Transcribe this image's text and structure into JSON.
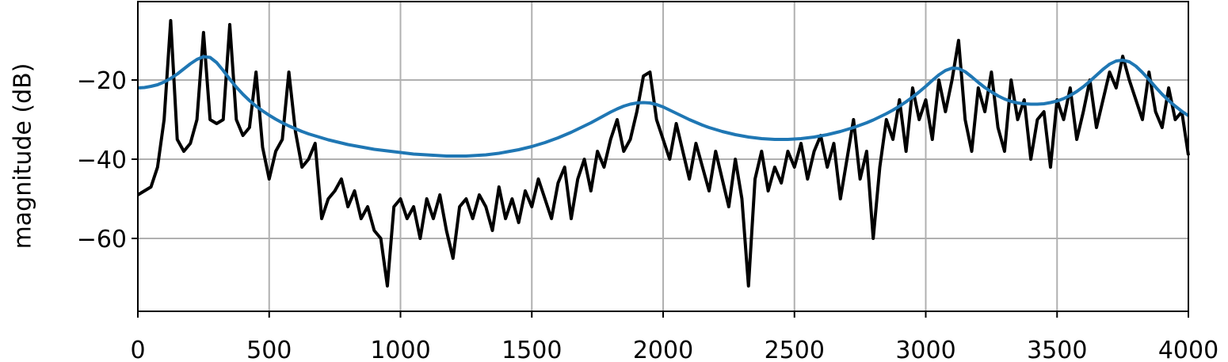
{
  "chart_data": {
    "type": "line",
    "y_label": "magnitude (dB)",
    "x": [
      0,
      25,
      50,
      75,
      100,
      125,
      150,
      175,
      200,
      225,
      250,
      275,
      300,
      325,
      350,
      375,
      400,
      425,
      450,
      475,
      500,
      525,
      550,
      575,
      600,
      625,
      650,
      675,
      700,
      725,
      750,
      775,
      800,
      825,
      850,
      875,
      900,
      925,
      950,
      975,
      1000,
      1025,
      1050,
      1075,
      1100,
      1125,
      1150,
      1175,
      1200,
      1225,
      1250,
      1275,
      1300,
      1325,
      1350,
      1375,
      1400,
      1425,
      1450,
      1475,
      1500,
      1525,
      1550,
      1575,
      1600,
      1625,
      1650,
      1675,
      1700,
      1725,
      1750,
      1775,
      1800,
      1825,
      1850,
      1875,
      1900,
      1925,
      1950,
      1975,
      2000,
      2025,
      2050,
      2075,
      2100,
      2125,
      2150,
      2175,
      2200,
      2225,
      2250,
      2275,
      2300,
      2325,
      2350,
      2375,
      2400,
      2425,
      2450,
      2475,
      2500,
      2525,
      2550,
      2575,
      2600,
      2625,
      2650,
      2675,
      2700,
      2725,
      2750,
      2775,
      2800,
      2825,
      2850,
      2875,
      2900,
      2925,
      2950,
      2975,
      3000,
      3025,
      3050,
      3075,
      3100,
      3125,
      3150,
      3175,
      3200,
      3225,
      3250,
      3275,
      3300,
      3325,
      3350,
      3375,
      3400,
      3425,
      3450,
      3475,
      3500,
      3525,
      3550,
      3575,
      3600,
      3625,
      3650,
      3675,
      3700,
      3725,
      3750,
      3775,
      3800,
      3825,
      3850,
      3875,
      3900,
      3925,
      3950,
      3975,
      4000
    ],
    "series": [
      {
        "color": "#000000",
        "values": [
          -49,
          -48,
          -47,
          -42,
          -30,
          -5,
          -35,
          -38,
          -36,
          -30,
          -8,
          -30,
          -31,
          -30,
          -6,
          -30,
          -34,
          -32,
          -18,
          -37,
          -45,
          -38,
          -35,
          -18,
          -33,
          -42,
          -40,
          -36,
          -55,
          -50,
          -48,
          -45,
          -52,
          -48,
          -55,
          -52,
          -58,
          -60,
          -72,
          -52,
          -50,
          -55,
          -52,
          -60,
          -50,
          -55,
          -49,
          -58,
          -65,
          -52,
          -50,
          -55,
          -49,
          -52,
          -58,
          -47,
          -55,
          -50,
          -56,
          -48,
          -52,
          -45,
          -50,
          -55,
          -46,
          -42,
          -55,
          -45,
          -40,
          -48,
          -38,
          -42,
          -35,
          -30,
          -38,
          -35,
          -28,
          -19,
          -18,
          -30,
          -35,
          -40,
          -31,
          -38,
          -45,
          -36,
          -42,
          -48,
          -38,
          -45,
          -52,
          -40,
          -50,
          -72,
          -45,
          -38,
          -48,
          -42,
          -46,
          -38,
          -42,
          -36,
          -45,
          -38,
          -34,
          -42,
          -36,
          -50,
          -40,
          -30,
          -45,
          -38,
          -60,
          -42,
          -30,
          -35,
          -25,
          -38,
          -22,
          -30,
          -25,
          -35,
          -20,
          -28,
          -20,
          -10,
          -30,
          -38,
          -22,
          -28,
          -18,
          -32,
          -38,
          -20,
          -30,
          -25,
          -40,
          -30,
          -28,
          -42,
          -25,
          -30,
          -22,
          -35,
          -28,
          -20,
          -32,
          -25,
          -18,
          -22,
          -14,
          -20,
          -25,
          -30,
          -18,
          -28,
          -32,
          -22,
          -30,
          -28,
          -39
        ]
      },
      {
        "color": "#1f77b4",
        "values": [
          -22,
          -21.9,
          -21.6,
          -21.2,
          -20.5,
          -19.6,
          -18.5,
          -17.2,
          -15.9,
          -14.8,
          -14.1,
          -14.3,
          -15.6,
          -17.6,
          -19.8,
          -21.8,
          -23.6,
          -25.2,
          -26.6,
          -27.8,
          -28.9,
          -29.9,
          -30.8,
          -31.6,
          -32.3,
          -33,
          -33.6,
          -34.1,
          -34.6,
          -35.1,
          -35.5,
          -35.9,
          -36.3,
          -36.6,
          -36.9,
          -37.2,
          -37.5,
          -37.7,
          -37.9,
          -38.1,
          -38.3,
          -38.5,
          -38.7,
          -38.8,
          -38.9,
          -39,
          -39.1,
          -39.2,
          -39.2,
          -39.2,
          -39.2,
          -39.1,
          -39,
          -38.9,
          -38.7,
          -38.5,
          -38.2,
          -37.9,
          -37.6,
          -37.2,
          -36.8,
          -36.3,
          -35.8,
          -35.2,
          -34.6,
          -33.9,
          -33.2,
          -32.4,
          -31.6,
          -30.8,
          -29.9,
          -29,
          -28.1,
          -27.3,
          -26.6,
          -26.1,
          -25.8,
          -25.7,
          -25.8,
          -26.2,
          -26.8,
          -27.6,
          -28.4,
          -29.2,
          -30,
          -30.7,
          -31.4,
          -32,
          -32.5,
          -33,
          -33.4,
          -33.8,
          -34.1,
          -34.4,
          -34.6,
          -34.8,
          -34.9,
          -35,
          -35,
          -35,
          -34.9,
          -34.8,
          -34.6,
          -34.4,
          -34.1,
          -33.8,
          -33.4,
          -33,
          -32.5,
          -32,
          -31.4,
          -30.8,
          -30.1,
          -29.3,
          -28.5,
          -27.6,
          -26.6,
          -25.5,
          -24.3,
          -23,
          -21.6,
          -20.1,
          -18.7,
          -17.6,
          -17,
          -17.1,
          -17.9,
          -19.2,
          -20.6,
          -21.9,
          -23,
          -24,
          -24.8,
          -25.4,
          -25.8,
          -26,
          -26.1,
          -26.1,
          -26,
          -25.7,
          -25.3,
          -24.7,
          -23.9,
          -22.9,
          -21.7,
          -20.3,
          -18.8,
          -17.3,
          -16,
          -15.2,
          -15,
          -15.4,
          -16.5,
          -18.1,
          -19.9,
          -21.8,
          -23.6,
          -25.2,
          -26.6,
          -27.9,
          -29
        ]
      }
    ],
    "xlim": [
      0,
      4000
    ],
    "xticks": [
      0,
      500,
      1000,
      1500,
      2000,
      2500,
      3000,
      3500,
      4000
    ],
    "ylim": [
      -78.4,
      -0.2
    ],
    "yticks": [
      {
        "value": -60,
        "label": "−60"
      },
      {
        "value": -40,
        "label": "−40"
      },
      {
        "value": -20,
        "label": "−20"
      }
    ],
    "grid": true
  }
}
